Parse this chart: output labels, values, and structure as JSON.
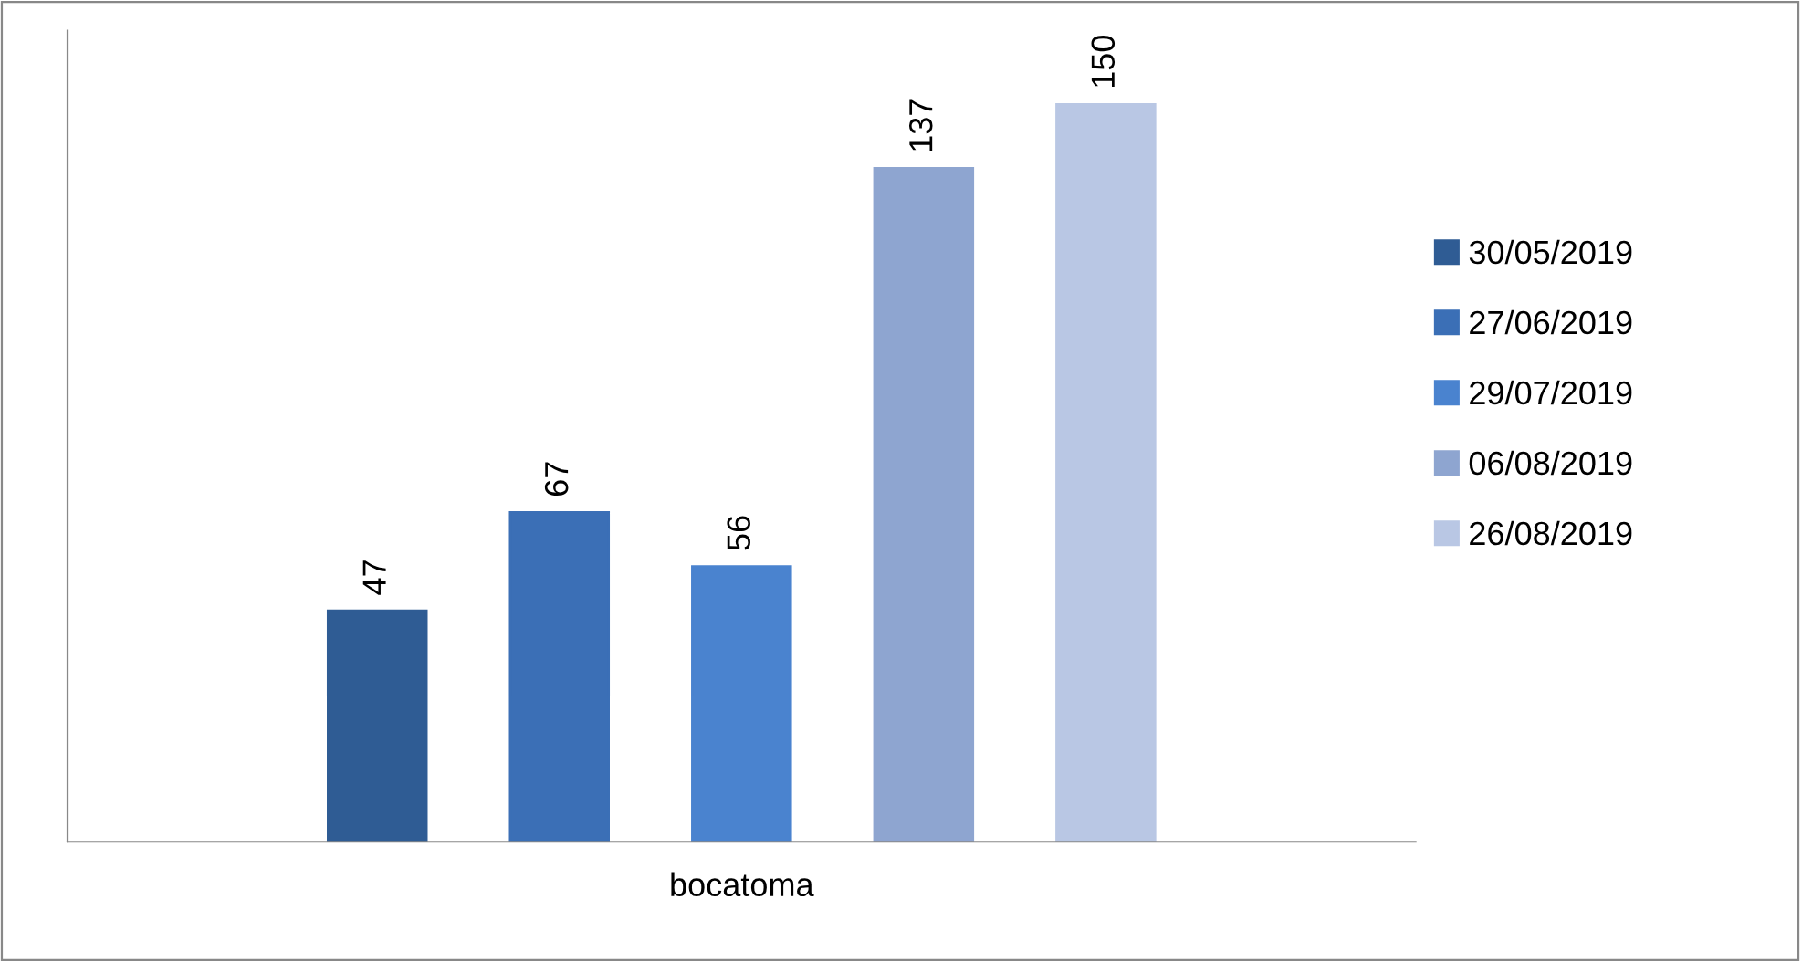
{
  "chart_data": {
    "type": "bar",
    "categories": [
      null,
      null,
      null,
      null,
      null
    ],
    "xlabel": "bocatoma",
    "stacked": true,
    "series": [
      {
        "name": "30/05/2019",
        "color": "#2f5c94",
        "values": [
          47,
          null,
          null,
          null,
          null
        ]
      },
      {
        "name": "27/06/2019",
        "color": "#3b6fb6",
        "values": [
          null,
          67,
          null,
          null,
          null
        ]
      },
      {
        "name": "29/07/2019",
        "color": "#4a83cf",
        "values": [
          null,
          null,
          56,
          null,
          null
        ]
      },
      {
        "name": "06/08/2019",
        "color": "#8ea5d0",
        "values": [
          null,
          null,
          null,
          137,
          null
        ]
      },
      {
        "name": "26/08/2019",
        "color": "#b9c7e4",
        "values": [
          null,
          null,
          null,
          null,
          150
        ]
      }
    ],
    "data_labels": true,
    "legend": "right",
    "grid": false,
    "tick_labels": "x"
  }
}
